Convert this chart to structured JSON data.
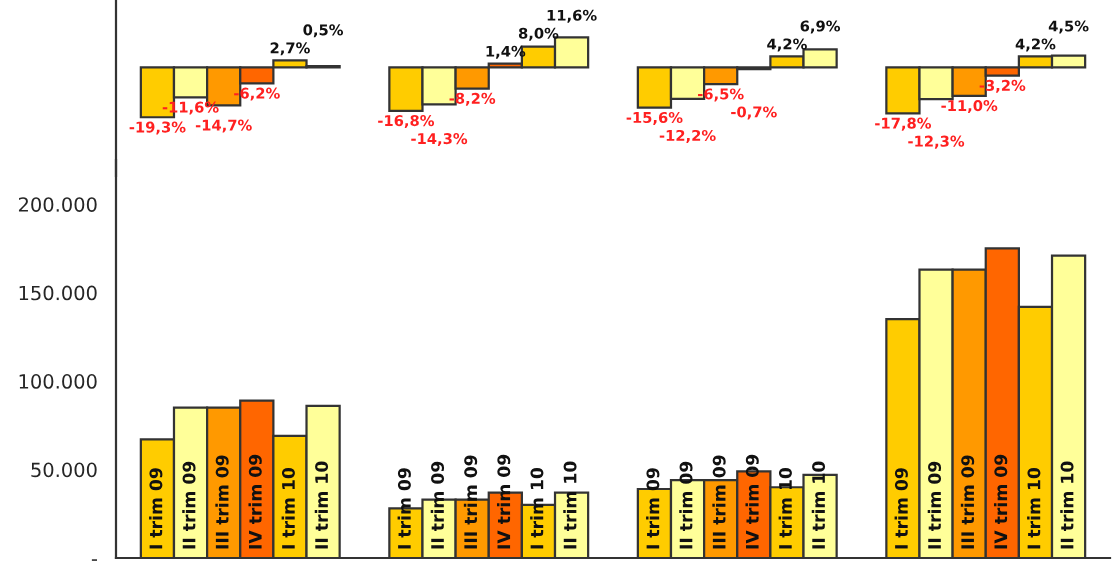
{
  "chart_data": [
    {
      "type": "bar",
      "categories": [
        null,
        null,
        null,
        null
      ],
      "tick_labels": false,
      "legend": false,
      "grid": false,
      "ylim": [
        -42,
        26
      ],
      "series": [
        {
          "color": "#ffcc00",
          "values": [
            -19.3,
            -16.8,
            -15.6,
            -17.8
          ],
          "value_labels": [
            "-19,3%",
            "-16,8%",
            "-15,6%",
            "-17,8%"
          ]
        },
        {
          "color": "#ffff99",
          "values": [
            -11.6,
            -14.3,
            -12.2,
            -12.3
          ],
          "value_labels": [
            "-11,6%",
            "-14,3%",
            "-12,2%",
            "-12,3%"
          ]
        },
        {
          "color": "#ff9900",
          "values": [
            -14.7,
            -8.2,
            -6.5,
            -11.0
          ],
          "value_labels": [
            "-14,7%",
            "-8,2%",
            "-6,5%",
            "-11,0%"
          ]
        },
        {
          "color": "#ff6600",
          "values": [
            -6.2,
            1.4,
            -0.7,
            -3.2
          ],
          "value_labels": [
            "-6,2%",
            "1,4%",
            "-0,7%",
            "-3,2%"
          ]
        },
        {
          "color": "#ffcc00",
          "values": [
            2.7,
            8.0,
            4.2,
            4.2
          ],
          "value_labels": [
            "2,7%",
            "8,0%",
            "4,2%",
            "4,2%"
          ]
        },
        {
          "color": "#ffff99",
          "values": [
            0.5,
            11.6,
            6.9,
            4.5
          ],
          "value_labels": [
            "0,5%",
            "11,6%",
            "6,9%",
            "4,5%"
          ]
        }
      ]
    },
    {
      "type": "bar",
      "categories": [
        null,
        null,
        null,
        null
      ],
      "tick_labels": "y",
      "legend": false,
      "grid": false,
      "ylim": [
        0,
        225000
      ],
      "yticks": [
        {
          "value": 0,
          "label": "-"
        },
        {
          "value": 50000,
          "label": "50.000"
        },
        {
          "value": 100000,
          "label": "100.000"
        },
        {
          "value": 150000,
          "label": "150.000"
        },
        {
          "value": 200000,
          "label": "200.000"
        }
      ],
      "series": [
        {
          "name": "I trim 09",
          "color": "#ffcc00",
          "values": [
            67000,
            28000,
            39000,
            135000
          ]
        },
        {
          "name": "II trim 09",
          "color": "#ffff99",
          "values": [
            85000,
            33000,
            44000,
            163000
          ]
        },
        {
          "name": "III trim 09",
          "color": "#ff9900",
          "values": [
            85000,
            33000,
            44000,
            163000
          ]
        },
        {
          "name": "IV trim 09",
          "color": "#ff6600",
          "values": [
            89000,
            37000,
            49000,
            175000
          ]
        },
        {
          "name": "I trim 10",
          "color": "#ffcc00",
          "values": [
            69000,
            30000,
            40000,
            142000
          ]
        },
        {
          "name": "II trim 10",
          "color": "#ffff99",
          "values": [
            86000,
            37000,
            47000,
            171000
          ]
        }
      ]
    }
  ]
}
